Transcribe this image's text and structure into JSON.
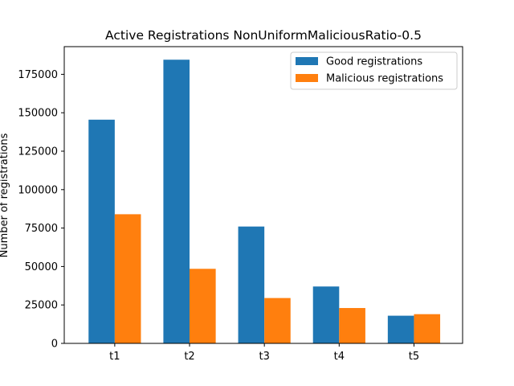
{
  "chart_data": {
    "type": "bar",
    "title": "Active Registrations NonUniformMaliciousRatio-0.5",
    "xlabel": "",
    "ylabel": "Number of registrations",
    "categories": [
      "t1",
      "t2",
      "t3",
      "t4",
      "t5"
    ],
    "series": [
      {
        "name": "Good registrations",
        "color": "#1f77b4",
        "values": [
          145500,
          184500,
          76000,
          37000,
          18000
        ]
      },
      {
        "name": "Malicious registrations",
        "color": "#ff7f0e",
        "values": [
          84000,
          48500,
          29500,
          23000,
          19000
        ]
      }
    ],
    "ylim": [
      0,
      193000
    ],
    "yticks": [
      0,
      25000,
      50000,
      75000,
      100000,
      125000,
      150000,
      175000
    ],
    "grid": false,
    "legend_position": "top-right"
  }
}
